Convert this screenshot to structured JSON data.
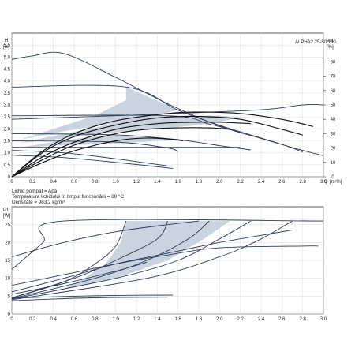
{
  "chart_data": [
    {
      "type": "line",
      "title": "ALPHA2 25-50 180",
      "ylabel": "H",
      "yunit": "[m]",
      "y2label": "eta",
      "y2unit": "[%]",
      "xlabel": "Q",
      "xunit": "[m³/h]",
      "xlim": [
        0,
        3.0
      ],
      "ylim": [
        0,
        6.0
      ],
      "y2lim": [
        0,
        100
      ],
      "xticks": [
        "0",
        "0.2",
        "0.4",
        "0.6",
        "0.8",
        "1.0",
        "1.2",
        "1.4",
        "1.6",
        "1.8",
        "2.0",
        "2.2",
        "2.4",
        "2.6",
        "2.8",
        "3.0"
      ],
      "yticks": [
        "0",
        "0.5",
        "1.0",
        "1.5",
        "2.0",
        "2.5",
        "3.0",
        "3.5",
        "4.0",
        "4.5",
        "5.0",
        "5.5"
      ],
      "y2ticks": [
        "0",
        "10",
        "20",
        "30",
        "40",
        "50",
        "60",
        "70",
        "80"
      ],
      "grid": true,
      "series": [
        {
          "values": [
            [
              0,
              4.9
            ],
            [
              0.2,
              5.05
            ],
            [
              0.5,
              5.15
            ],
            [
              1.0,
              4.15
            ],
            [
              1.5,
              3.05
            ],
            [
              2.0,
              2.12
            ],
            [
              2.4,
              1.6
            ],
            [
              2.8,
              1.1
            ],
            [
              3.0,
              0.88
            ]
          ]
        },
        {
          "values": [
            [
              0,
              3.75
            ],
            [
              1.1,
              3.75
            ],
            [
              1.6,
              2.78
            ],
            [
              2.0,
              2.15
            ],
            [
              2.6,
              1.35
            ],
            [
              2.8,
              1.03
            ]
          ]
        },
        {
          "values": [
            [
              0,
              2.55
            ],
            [
              1.5,
              2.55
            ],
            [
              1.9,
              2.2
            ],
            [
              2.2,
              1.85
            ]
          ]
        },
        {
          "values": [
            [
              0,
              1.8
            ],
            [
              1.0,
              1.75
            ],
            [
              1.6,
              1.55
            ],
            [
              2.0,
              1.3
            ],
            [
              2.3,
              1.12
            ]
          ]
        },
        {
          "values": [
            [
              0,
              1.5
            ],
            [
              1.0,
              1.45
            ],
            [
              1.5,
              1.2
            ],
            [
              1.6,
              1.05
            ]
          ]
        },
        {
          "values": [
            [
              0,
              1.1
            ],
            [
              0.5,
              1.0
            ],
            [
              1.0,
              0.75
            ],
            [
              1.5,
              0.45
            ]
          ]
        },
        {
          "values": [
            [
              0,
              0.9
            ],
            [
              0.5,
              0.8
            ],
            [
              1.0,
              0.6
            ],
            [
              1.55,
              0.35
            ]
          ]
        },
        {
          "values": [
            [
              0,
              1.23
            ],
            [
              2.2,
              1.23
            ]
          ]
        },
        {
          "values": [
            [
              0,
              2.4
            ],
            [
              2.2,
              2.75
            ],
            [
              2.8,
              3.0
            ],
            [
              3.0,
              3.0
            ]
          ]
        },
        {
          "values": [
            [
              0,
              0
            ],
            [
              0.3,
              18
            ],
            [
              0.6,
              30
            ],
            [
              1.0,
              39
            ],
            [
              1.5,
              44
            ],
            [
              1.8,
              45
            ],
            [
              2.2,
              44
            ],
            [
              2.6,
              40
            ],
            [
              2.9,
              35
            ]
          ]
        },
        {
          "values": [
            [
              0,
              0
            ],
            [
              0.3,
              17
            ],
            [
              0.6,
              28
            ],
            [
              1.0,
              36
            ],
            [
              1.4,
              41
            ],
            [
              1.8,
              42
            ],
            [
              2.2,
              40
            ],
            [
              2.6,
              33
            ],
            [
              2.8,
              29
            ]
          ]
        },
        {
          "values": [
            [
              0,
              0
            ],
            [
              0.3,
              14
            ],
            [
              0.6,
              24
            ],
            [
              1.0,
              33
            ],
            [
              1.4,
              37
            ],
            [
              1.8,
              38
            ],
            [
              2.0,
              38
            ],
            [
              2.3,
              37
            ]
          ]
        },
        {
          "values": [
            [
              0,
              0
            ],
            [
              0.3,
              12
            ],
            [
              0.6,
              22
            ],
            [
              1.0,
              30
            ],
            [
              1.3,
              33
            ],
            [
              1.6,
              34
            ],
            [
              1.9,
              34
            ],
            [
              2.1,
              33
            ]
          ]
        },
        {
          "values": [
            [
              0,
              0
            ],
            [
              0.3,
              10
            ],
            [
              0.6,
              18
            ],
            [
              1.0,
              25
            ],
            [
              1.3,
              27
            ],
            [
              1.55,
              26
            ],
            [
              1.65,
              25
            ]
          ]
        }
      ],
      "hatched_regions": [
        {
          "values": [
            [
              0.08,
              1.55
            ],
            [
              0.4,
              2.0
            ],
            [
              0.8,
              2.55
            ],
            [
              1.1,
              3.2
            ],
            [
              1.1,
              3.75
            ],
            [
              1.6,
              2.8
            ],
            [
              1.4,
              2.55
            ],
            [
              1.0,
              2.25
            ],
            [
              0.5,
              1.9
            ],
            [
              0.2,
              1.65
            ]
          ]
        },
        {
          "values": [
            [
              0.06,
              1.4
            ],
            [
              0.4,
              1.7
            ],
            [
              0.8,
              2.05
            ],
            [
              1.3,
              2.55
            ],
            [
              1.6,
              2.55
            ],
            [
              1.9,
              2.2
            ],
            [
              1.4,
              2.0
            ],
            [
              1.0,
              1.85
            ],
            [
              0.5,
              1.6
            ]
          ]
        },
        {
          "values": [
            [
              0.05,
              1.2
            ],
            [
              0.4,
              1.45
            ],
            [
              0.9,
              1.75
            ],
            [
              1.6,
              1.55
            ],
            [
              1.25,
              1.45
            ],
            [
              0.8,
              1.35
            ],
            [
              0.4,
              1.3
            ]
          ]
        },
        {
          "values": [
            [
              1.5,
              2.55
            ],
            [
              2.0,
              2.55
            ],
            [
              2.2,
              2.48
            ],
            [
              1.9,
              2.2
            ]
          ]
        }
      ]
    },
    {
      "type": "line",
      "ylabel": "P1",
      "yunit": "[W]",
      "xlim": [
        0,
        3.0
      ],
      "ylim": [
        0,
        30
      ],
      "xticks": [
        "0",
        "0.2",
        "0.4",
        "0.6",
        "0.8",
        "1.0",
        "1.2",
        "1.4",
        "1.6",
        "1.8",
        "2.0",
        "2.2",
        "2.4",
        "2.6",
        "2.8",
        "3.0"
      ],
      "yticks": [
        "0",
        "5",
        "10",
        "15",
        "20",
        "25"
      ],
      "grid": true,
      "series": [
        {
          "values": [
            [
              0,
              12.5
            ],
            [
              0.3,
              20
            ],
            [
              0.5,
              26
            ],
            [
              3.0,
              26
            ]
          ]
        },
        {
          "values": [
            [
              0,
              4.5
            ],
            [
              0.5,
              9
            ],
            [
              0.8,
              14
            ],
            [
              1.0,
              19
            ],
            [
              1.1,
              26
            ]
          ]
        },
        {
          "values": [
            [
              0,
              4.5
            ],
            [
              0.6,
              10
            ],
            [
              1.0,
              15
            ],
            [
              1.4,
              21
            ],
            [
              1.5,
              26
            ]
          ]
        },
        {
          "values": [
            [
              0,
              4.3
            ],
            [
              0.8,
              10
            ],
            [
              1.3,
              15
            ],
            [
              1.7,
              21
            ],
            [
              1.9,
              26
            ]
          ]
        },
        {
          "values": [
            [
              0,
              4.2
            ],
            [
              1.0,
              10
            ],
            [
              1.6,
              15
            ],
            [
              2.0,
              21
            ],
            [
              2.3,
              26
            ]
          ]
        },
        {
          "values": [
            [
              0,
              4.0
            ],
            [
              1.3,
              10
            ],
            [
              2.0,
              16
            ],
            [
              2.4,
              21
            ],
            [
              2.7,
              26
            ]
          ]
        },
        {
          "values": [
            [
              0,
              16
            ],
            [
              0.5,
              20
            ],
            [
              1.0,
              23
            ],
            [
              1.5,
              25
            ],
            [
              1.8,
              26
            ]
          ]
        },
        {
          "values": [
            [
              0,
              8
            ],
            [
              0.5,
              11
            ],
            [
              1.0,
              14
            ],
            [
              1.5,
              16.5
            ],
            [
              2.0,
              18.5
            ],
            [
              2.8,
              19
            ],
            [
              2.95,
              19
            ]
          ]
        },
        {
          "values": [
            [
              0,
              6.2
            ],
            [
              0.5,
              10
            ],
            [
              1.0,
              14
            ],
            [
              1.5,
              17
            ],
            [
              2.0,
              20
            ],
            [
              2.4,
              22
            ],
            [
              2.7,
              23.5
            ]
          ]
        },
        {
          "values": [
            [
              0,
              5.5
            ],
            [
              0.5,
              8.5
            ],
            [
              1.0,
              12
            ],
            [
              1.3,
              14.5
            ]
          ]
        },
        {
          "values": [
            [
              0,
              4.4
            ],
            [
              0.5,
              4.9
            ],
            [
              1.0,
              5.2
            ],
            [
              1.55,
              5.3
            ]
          ]
        },
        {
          "values": [
            [
              0,
              3.7
            ],
            [
              0.5,
              4.3
            ],
            [
              1.0,
              4.6
            ],
            [
              1.5,
              4.7
            ]
          ]
        }
      ],
      "hatched_regions": [
        {
          "values": [
            [
              0.5,
              7
            ],
            [
              0.7,
              10
            ],
            [
              0.9,
              14
            ],
            [
              1.05,
              20
            ],
            [
              1.1,
              26
            ],
            [
              2.1,
              26
            ],
            [
              1.85,
              21
            ],
            [
              1.5,
              15
            ],
            [
              1.0,
              10
            ],
            [
              0.6,
              7.5
            ]
          ]
        }
      ]
    }
  ],
  "info": {
    "line1": "Lichid pompat = Apă",
    "line2": "Temperatura lichidului în timpul funcţionării = 60 °C",
    "line3": "Densitate = 983.2 kg/m³"
  },
  "colors": {
    "curve": "#2c3a5c",
    "eta": "#111111",
    "fill": "#c9d4e0",
    "grid": "#dddddd",
    "axis": "#333333"
  }
}
